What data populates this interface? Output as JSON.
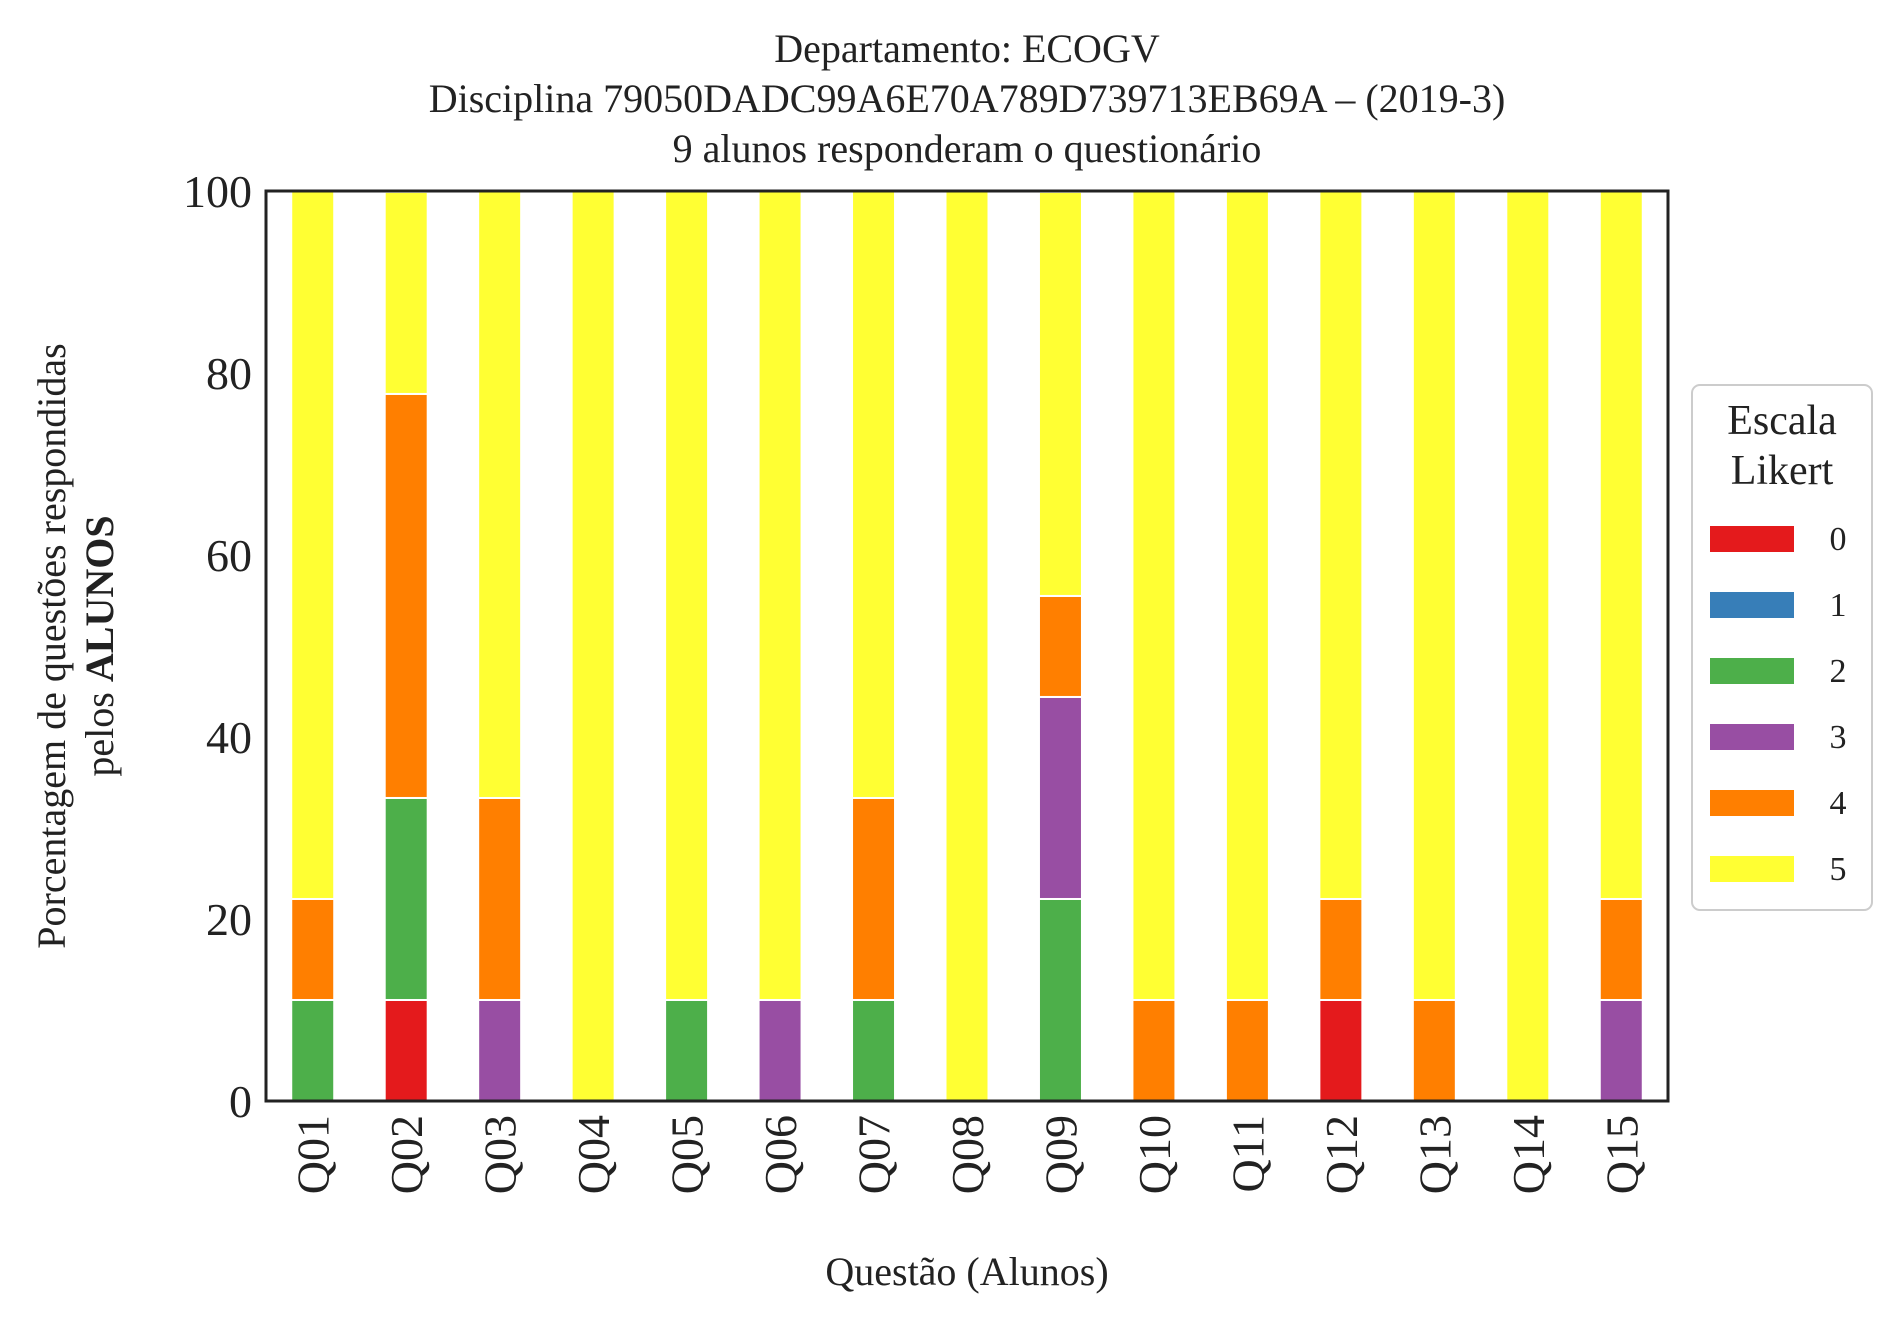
{
  "chart_data": {
    "type": "bar",
    "stacked": true,
    "title_lines": [
      "Departamento: ECOGV",
      "Disciplina 79050DADC99A6E70A789D739713EB69A – (2019-3)",
      "9 alunos responderam o questionário"
    ],
    "xlabel": "Questão (Alunos)",
    "ylabel_line1": "Porcentagem de questões respondidas",
    "ylabel_line2_prefix": "pelos ",
    "ylabel_line2_bold": "ALUNOS",
    "ylim": [
      0,
      100
    ],
    "yticks": [
      "0",
      "20",
      "40",
      "60",
      "80",
      "100"
    ],
    "grid": false,
    "legend_placement": "right-outside",
    "legend": {
      "title_line1": "Escala",
      "title_line2": "Likert"
    },
    "categories": [
      "Q01",
      "Q02",
      "Q03",
      "Q04",
      "Q05",
      "Q06",
      "Q07",
      "Q08",
      "Q09",
      "Q10",
      "Q11",
      "Q12",
      "Q13",
      "Q14",
      "Q15"
    ],
    "series": [
      {
        "name": "0",
        "color": "#e41a1c",
        "values": [
          0,
          11.1,
          0,
          0,
          0,
          0,
          0,
          0,
          0,
          0,
          0,
          11.1,
          0,
          0,
          0
        ]
      },
      {
        "name": "1",
        "color": "#377eb8",
        "values": [
          0,
          0,
          0,
          0,
          0,
          0,
          0,
          0,
          0,
          0,
          0,
          0,
          0,
          0,
          0
        ]
      },
      {
        "name": "2",
        "color": "#4daf4a",
        "values": [
          11.1,
          22.2,
          0,
          0,
          11.1,
          0,
          11.1,
          0,
          22.2,
          0,
          0,
          0,
          0,
          0,
          0
        ]
      },
      {
        "name": "3",
        "color": "#984ea3",
        "values": [
          0,
          0,
          11.1,
          0,
          0,
          11.1,
          0,
          0,
          22.2,
          0,
          0,
          0,
          0,
          0,
          11.1
        ]
      },
      {
        "name": "4",
        "color": "#ff7f00",
        "values": [
          11.1,
          44.4,
          22.2,
          0,
          0,
          0,
          22.2,
          0,
          11.1,
          11.1,
          11.1,
          11.1,
          11.1,
          0,
          11.1
        ]
      },
      {
        "name": "5",
        "color": "#ffff33",
        "values": [
          77.8,
          22.2,
          66.7,
          100,
          88.9,
          88.9,
          66.7,
          100,
          44.4,
          88.9,
          88.9,
          77.8,
          88.9,
          100,
          77.8
        ]
      }
    ]
  }
}
